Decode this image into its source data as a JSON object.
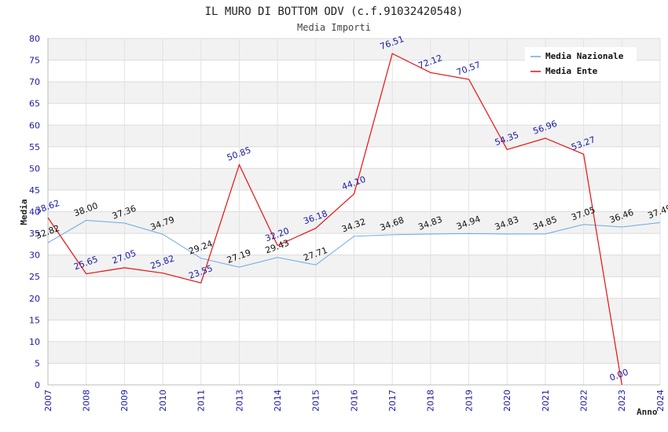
{
  "chart_data": {
    "type": "line",
    "title": "IL MURO DI BOTTOM ODV (c.f.91032420548)",
    "subtitle": "Media Importi",
    "xlabel": "Anno",
    "ylabel": "Media",
    "ylim": [
      0,
      80
    ],
    "yticks": [
      "0",
      "5",
      "10",
      "15",
      "20",
      "25",
      "30",
      "35",
      "40",
      "45",
      "50",
      "55",
      "60",
      "65",
      "70",
      "75",
      "80"
    ],
    "categories": [
      "2007",
      "2008",
      "2009",
      "2010",
      "2011",
      "2013",
      "2014",
      "2015",
      "2016",
      "2017",
      "2018",
      "2019",
      "2020",
      "2021",
      "2022",
      "2023",
      "2024"
    ],
    "legend_position": "top-right",
    "series": [
      {
        "name": "Media Nazionale",
        "color": "#6aa8e8",
        "label_color": "#111111",
        "values": [
          32.82,
          38.0,
          37.36,
          34.79,
          29.24,
          27.19,
          29.43,
          27.71,
          34.32,
          34.68,
          34.83,
          34.94,
          34.83,
          34.85,
          37.05,
          36.46,
          37.49
        ],
        "labels": [
          "32.82",
          "38.00",
          "37.36",
          "34.79",
          "29.24",
          "27.19",
          "29.43",
          "27.71",
          "34.32",
          "34.68",
          "34.83",
          "34.94",
          "34.83",
          "34.85",
          "37.05",
          "36.46",
          "37.49"
        ]
      },
      {
        "name": "Media Ente",
        "color": "#e81010",
        "label_color": "#1a1aa6",
        "values": [
          38.62,
          25.65,
          27.05,
          25.82,
          23.55,
          50.85,
          32.2,
          36.18,
          44.1,
          76.51,
          72.12,
          70.57,
          54.35,
          56.96,
          53.27,
          0.0,
          null
        ],
        "labels": [
          "38.62",
          "25.65",
          "27.05",
          "25.82",
          "23.55",
          "50.85",
          "32.20",
          "36.18",
          "44.10",
          "76.51",
          "72.12",
          "70.57",
          "54.35",
          "56.96",
          "53.27",
          "0.00",
          null
        ]
      }
    ]
  }
}
